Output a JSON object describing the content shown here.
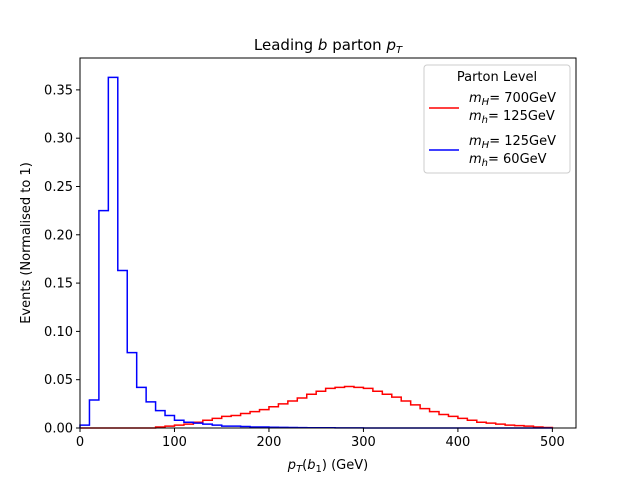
{
  "chart_data": {
    "type": "line",
    "drawstyle": "steps",
    "title": "Leading b parton p_T",
    "title_parts": [
      "Leading ",
      "b",
      " parton ",
      "p",
      "T"
    ],
    "xlabel": "p_T(b_1) (GeV)",
    "xlabel_parts": [
      "p",
      "T",
      "(",
      "b",
      "1",
      ") (GeV)"
    ],
    "ylabel": "Events (Normalised to 1)",
    "xlim": [
      0,
      525
    ],
    "ylim": [
      0,
      0.383
    ],
    "xticks": [
      0,
      100,
      200,
      300,
      400,
      500
    ],
    "xtick_labels": [
      "0",
      "100",
      "200",
      "300",
      "400",
      "500"
    ],
    "yticks": [
      0,
      0.05,
      0.1,
      0.15,
      0.2,
      0.25,
      0.3,
      0.35
    ],
    "ytick_labels": [
      "0.00",
      "0.05",
      "0.10",
      "0.15",
      "0.20",
      "0.25",
      "0.30",
      "0.35"
    ],
    "grid": false,
    "legend": {
      "title": "Parton Level",
      "placement": "top-right",
      "entries": [
        {
          "line1_var": "m",
          "line1_sub": "H",
          "line1_val": "= 700GeV",
          "line2_var": "m",
          "line2_sub": "h",
          "line2_val": "= 125GeV"
        },
        {
          "line1_var": "m",
          "line1_sub": "H",
          "line1_val": "= 125GeV",
          "line2_var": "m",
          "line2_sub": "h",
          "line2_val": "= 60GeV"
        }
      ]
    },
    "bin_edges": [
      0,
      10,
      20,
      30,
      40,
      50,
      60,
      70,
      80,
      90,
      100,
      110,
      120,
      130,
      140,
      150,
      160,
      170,
      180,
      190,
      200,
      210,
      220,
      230,
      240,
      250,
      260,
      270,
      280,
      290,
      300,
      310,
      320,
      330,
      340,
      350,
      360,
      370,
      380,
      390,
      400,
      410,
      420,
      430,
      440,
      450,
      460,
      470,
      480,
      490,
      500
    ],
    "series": [
      {
        "color": "#ff0000",
        "values": [
          0,
          0,
          0,
          0,
          0,
          0,
          0,
          0,
          0.001,
          0.002,
          0.003,
          0.004,
          0.006,
          0.008,
          0.01,
          0.012,
          0.013,
          0.015,
          0.017,
          0.019,
          0.022,
          0.025,
          0.028,
          0.031,
          0.035,
          0.038,
          0.041,
          0.042,
          0.043,
          0.042,
          0.041,
          0.038,
          0.035,
          0.032,
          0.028,
          0.024,
          0.02,
          0.017,
          0.014,
          0.012,
          0.01,
          0.008,
          0.006,
          0.005,
          0.004,
          0.003,
          0.0025,
          0.002,
          0.001,
          0.0005
        ]
      },
      {
        "color": "#0000ff",
        "values": [
          0.003,
          0.029,
          0.225,
          0.363,
          0.163,
          0.078,
          0.042,
          0.027,
          0.018,
          0.013,
          0.008,
          0.006,
          0.005,
          0.004,
          0.003,
          0.002,
          0.002,
          0.0015,
          0.001,
          0.001,
          0.0008,
          0.0006,
          0.0005,
          0.0004,
          0.0003,
          0.0002,
          0.0002,
          0.0001,
          0.0001,
          0.0001,
          0,
          0,
          0,
          0,
          0,
          0,
          0,
          0,
          0,
          0,
          0,
          0,
          0,
          0,
          0,
          0,
          0,
          0,
          0,
          0
        ]
      }
    ]
  }
}
